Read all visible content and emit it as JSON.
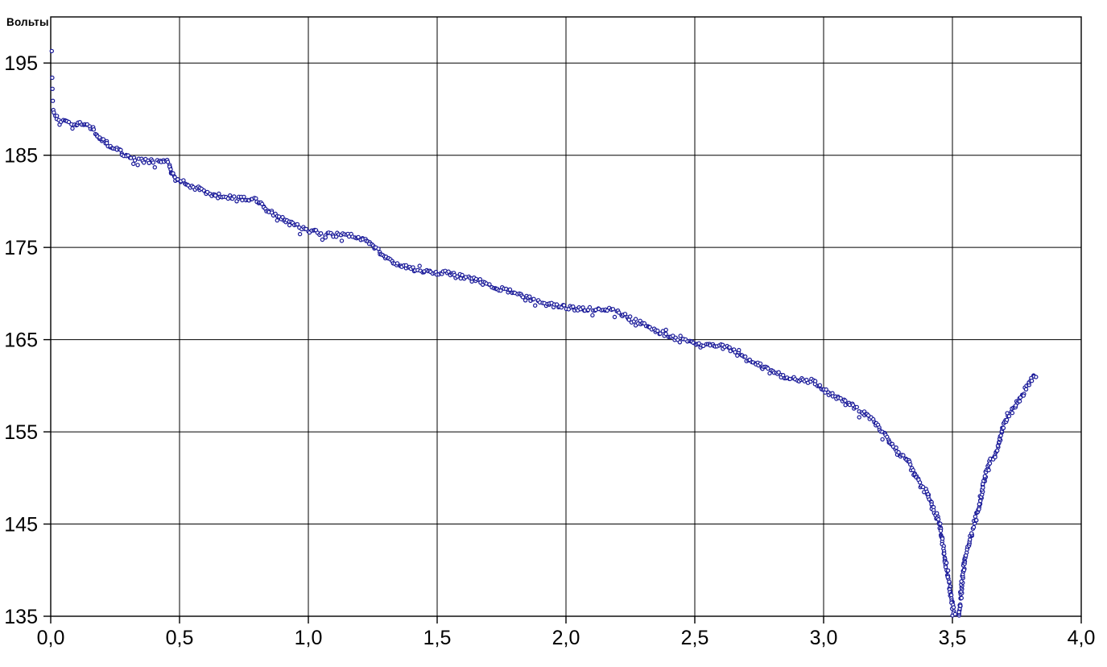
{
  "page": {
    "background": "#ffffff"
  },
  "chart_data": {
    "type": "scatter",
    "title": "",
    "ylabel": "Вольты",
    "xlabel": "",
    "marker": "open-circle",
    "grid": true,
    "legend": "none",
    "point_color": "#1a1a99",
    "point_fill": "#ffffff",
    "axis_color": "#000000",
    "grid_color": "#000000",
    "xlim": [
      0.0,
      4.0
    ],
    "ylim": [
      135,
      200
    ],
    "x_tick_labels": [
      "0,0",
      "0,5",
      "1,0",
      "1,5",
      "2,0",
      "2,5",
      "3,0",
      "3,5",
      "4,0"
    ],
    "x_tick_values": [
      0.0,
      0.5,
      1.0,
      1.5,
      2.0,
      2.5,
      3.0,
      3.5,
      4.0
    ],
    "y_tick_labels": [
      "135",
      "145",
      "155",
      "165",
      "175",
      "185",
      "195"
    ],
    "y_tick_values": [
      135,
      145,
      155,
      165,
      175,
      185,
      195
    ],
    "series": [
      {
        "name": "Вольты",
        "startup_transient_points": [
          [
            0.004,
            196.3
          ],
          [
            0.006,
            193.4
          ],
          [
            0.007,
            192.2
          ],
          [
            0.008,
            190.9
          ],
          [
            0.01,
            189.9
          ]
        ],
        "spine_descent": [
          [
            0.012,
            189.6
          ],
          [
            0.03,
            189.0
          ],
          [
            0.06,
            188.6
          ],
          [
            0.085,
            188.4
          ],
          [
            0.145,
            188.3
          ],
          [
            0.165,
            187.8
          ],
          [
            0.2,
            186.6
          ],
          [
            0.24,
            185.9
          ],
          [
            0.285,
            185.1
          ],
          [
            0.33,
            184.5
          ],
          [
            0.345,
            184.4
          ],
          [
            0.455,
            184.3
          ],
          [
            0.47,
            183.0
          ],
          [
            0.49,
            182.3
          ],
          [
            0.52,
            182.0
          ],
          [
            0.56,
            181.5
          ],
          [
            0.61,
            180.9
          ],
          [
            0.66,
            180.5
          ],
          [
            0.7,
            180.4
          ],
          [
            0.79,
            180.2
          ],
          [
            0.82,
            179.6
          ],
          [
            0.86,
            178.7
          ],
          [
            0.93,
            177.6
          ],
          [
            1.0,
            176.9
          ],
          [
            1.05,
            176.5
          ],
          [
            1.18,
            176.2
          ],
          [
            1.22,
            175.7
          ],
          [
            1.27,
            174.7
          ],
          [
            1.32,
            173.6
          ],
          [
            1.37,
            172.9
          ],
          [
            1.43,
            172.5
          ],
          [
            1.47,
            172.3
          ],
          [
            1.555,
            172.2
          ],
          [
            1.575,
            171.9
          ],
          [
            1.62,
            171.8
          ],
          [
            1.66,
            171.4
          ],
          [
            1.705,
            170.8
          ],
          [
            1.76,
            170.4
          ],
          [
            1.81,
            170.0
          ],
          [
            1.865,
            169.4
          ],
          [
            1.92,
            168.9
          ],
          [
            1.975,
            168.6
          ],
          [
            2.02,
            168.4
          ],
          [
            2.18,
            168.3
          ],
          [
            2.23,
            167.6
          ],
          [
            2.29,
            166.8
          ],
          [
            2.34,
            166.1
          ],
          [
            2.39,
            165.5
          ],
          [
            2.44,
            165.0
          ],
          [
            2.49,
            164.6
          ],
          [
            2.53,
            164.35
          ],
          [
            2.63,
            164.2
          ],
          [
            2.7,
            162.9
          ],
          [
            2.76,
            162.1
          ],
          [
            2.82,
            161.3
          ],
          [
            2.86,
            160.8
          ],
          [
            2.96,
            160.5
          ],
          [
            3.01,
            159.4
          ],
          [
            3.06,
            158.6
          ],
          [
            3.11,
            158.0
          ],
          [
            3.14,
            157.3
          ],
          [
            3.19,
            156.3
          ],
          [
            3.22,
            155.3
          ],
          [
            3.26,
            153.8
          ],
          [
            3.3,
            152.4
          ],
          [
            3.33,
            151.9
          ],
          [
            3.36,
            150.1
          ],
          [
            3.385,
            148.8
          ],
          [
            3.4,
            148.5
          ],
          [
            3.43,
            146.4
          ],
          [
            3.45,
            145.0
          ],
          [
            3.47,
            141.5
          ],
          [
            3.49,
            138.0
          ],
          [
            3.505,
            135.3
          ],
          [
            3.512,
            135.0
          ]
        ],
        "spine_recovery": [
          [
            3.525,
            135.0
          ],
          [
            3.53,
            136.5
          ],
          [
            3.54,
            139.5
          ],
          [
            3.55,
            141.5
          ],
          [
            3.565,
            143.0
          ],
          [
            3.58,
            144.5
          ],
          [
            3.6,
            146.5
          ],
          [
            3.615,
            148.5
          ],
          [
            3.63,
            150.5
          ],
          [
            3.645,
            151.8
          ],
          [
            3.665,
            152.3
          ],
          [
            3.68,
            153.8
          ],
          [
            3.7,
            155.8
          ],
          [
            3.715,
            156.8
          ],
          [
            3.73,
            157.2
          ],
          [
            3.745,
            157.8
          ],
          [
            3.775,
            159.3
          ],
          [
            3.8,
            160.3
          ],
          [
            3.82,
            161.2
          ],
          [
            3.832,
            161.0
          ]
        ]
      }
    ]
  }
}
